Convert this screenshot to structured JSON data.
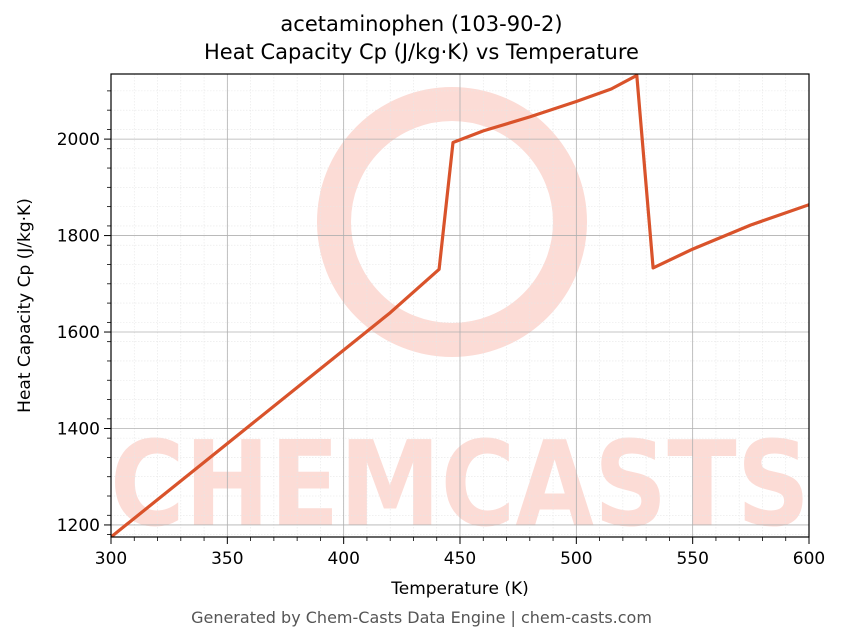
{
  "title": "acetaminophen (103-90-2)",
  "subtitle": "Heat Capacity Cp (J/kg·K) vs Temperature",
  "footer": "Generated by Chem-Casts Data Engine | chem-casts.com",
  "watermark": {
    "text": "CHEMCASTS",
    "color": "#fcdcd6"
  },
  "line_color": "#d9532b",
  "chart_data": {
    "type": "line",
    "title": "acetaminophen (103-90-2)",
    "subtitle": "Heat Capacity Cp (J/kg·K) vs Temperature",
    "xlabel": "Temperature (K)",
    "ylabel": "Heat Capacity Cp (J/kg·K)",
    "xlim": [
      300,
      600
    ],
    "ylim": [
      1175,
      2135
    ],
    "xticks": [
      300,
      350,
      400,
      450,
      500,
      550,
      600
    ],
    "yticks": [
      1200,
      1400,
      1600,
      1800,
      2000
    ],
    "grid": true,
    "series": [
      {
        "values": [
          [
            300,
            1175
          ],
          [
            340,
            1330
          ],
          [
            380,
            1485
          ],
          [
            420,
            1640
          ],
          [
            441,
            1730
          ],
          [
            447,
            1993
          ],
          [
            460,
            2017
          ],
          [
            480,
            2046
          ],
          [
            500,
            2078
          ],
          [
            515,
            2104
          ],
          [
            526,
            2132
          ],
          [
            533,
            1733
          ],
          [
            550,
            1772
          ],
          [
            575,
            1822
          ],
          [
            600,
            1864
          ]
        ]
      }
    ]
  }
}
